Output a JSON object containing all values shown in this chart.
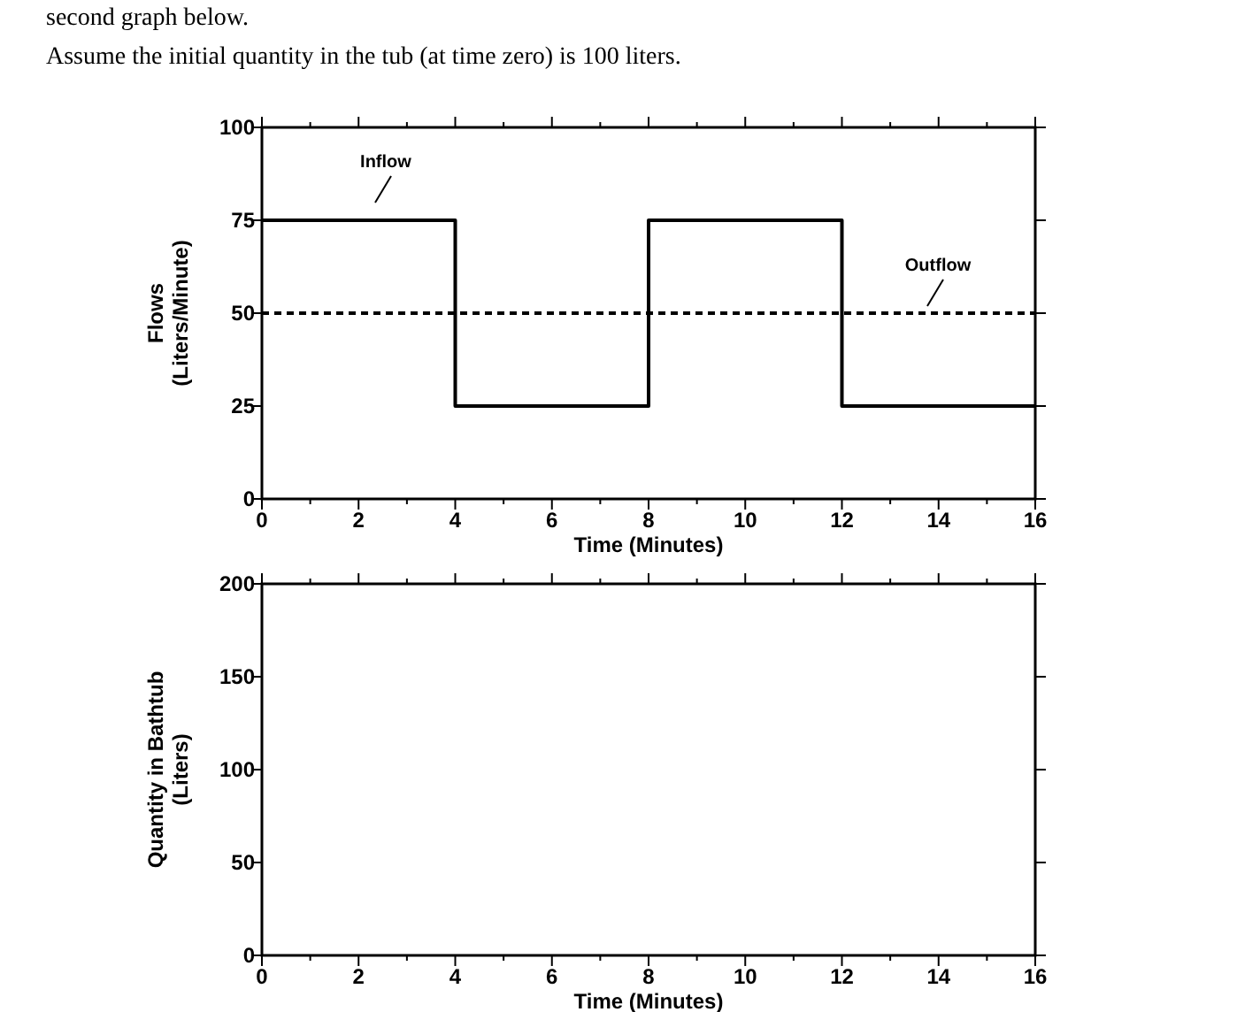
{
  "chart_data": [
    {
      "type": "step",
      "annotations": [
        "second graph below.",
        "Assume the initial quantity in the tub (at time zero) is 100 liters."
      ],
      "xlabel": "Time (Minutes)",
      "ylabel": "Flows\n(Liters/Minute)",
      "xlim": [
        0,
        16
      ],
      "ylim": [
        0,
        100
      ],
      "xticks": [
        0,
        {
          "value": 1,
          "label": null
        },
        2,
        {
          "value": 3,
          "label": null
        },
        4,
        {
          "value": 5,
          "label": null
        },
        6,
        {
          "value": 7,
          "label": null
        },
        8,
        {
          "value": 9,
          "label": null
        },
        10,
        {
          "value": 11,
          "label": null
        },
        12,
        {
          "value": 13,
          "label": null
        },
        14,
        {
          "value": 15,
          "label": null
        },
        16
      ],
      "yticks": [
        0,
        25,
        50,
        75,
        100
      ],
      "grid": false,
      "series": [
        {
          "name": "Inflow",
          "color": "#000000",
          "x": [
            0,
            4,
            8,
            12,
            16
          ],
          "values": [
            75,
            25,
            75,
            25,
            25
          ],
          "line_style": "solid"
        },
        {
          "name": "Outflow",
          "type": "line",
          "color": "#000000",
          "x": [
            0,
            16
          ],
          "values": [
            50,
            50
          ],
          "line_style": "dashed"
        }
      ]
    },
    {
      "type": "line",
      "xlabel": "Time (Minutes)",
      "ylabel": "Quantity in Bathtub\n(Liters)",
      "xlim": [
        0,
        16
      ],
      "ylim": [
        0,
        200
      ],
      "xticks": [
        0,
        {
          "value": 1,
          "label": null
        },
        2,
        {
          "value": 3,
          "label": null
        },
        4,
        {
          "value": 5,
          "label": null
        },
        6,
        {
          "value": 7,
          "label": null
        },
        8,
        {
          "value": 9,
          "label": null
        },
        10,
        {
          "value": 11,
          "label": null
        },
        12,
        {
          "value": 13,
          "label": null
        },
        14,
        {
          "value": 15,
          "label": null
        },
        16
      ],
      "yticks": [
        0,
        50,
        100,
        150,
        200
      ],
      "grid": false
    }
  ]
}
